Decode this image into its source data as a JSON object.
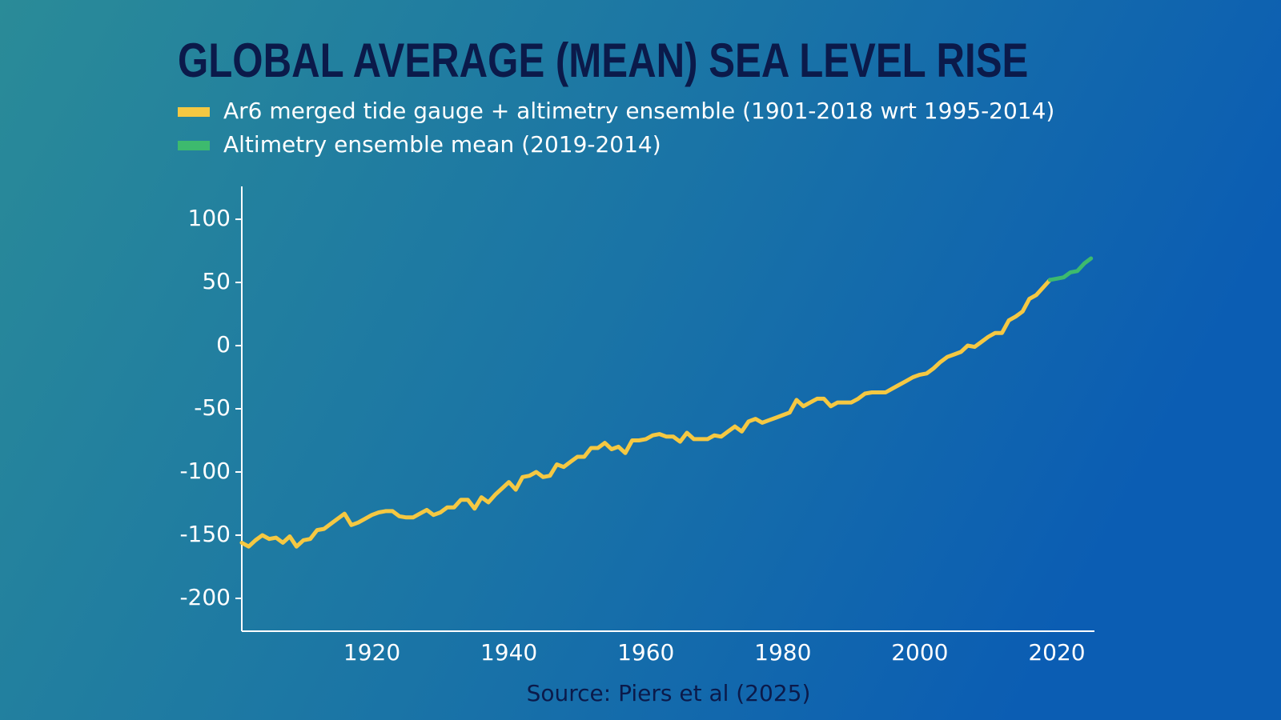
{
  "chart_data": {
    "type": "line",
    "title": "GLOBAL AVERAGE (MEAN) SEA LEVEL RISE",
    "source": "Source: Piers et al (2025)",
    "xlim": [
      1901,
      2025.5
    ],
    "xticks": [
      1920,
      1940,
      1960,
      1980,
      2000,
      2020
    ],
    "ylim": [
      -226,
      126
    ],
    "yticks": [
      -200,
      -150,
      -100,
      -50,
      0,
      50,
      100
    ],
    "grid": false,
    "series": [
      {
        "name": "Ar6 merged tide gauge + altimetry ensemble (1901-2018 wrt 1995-2014)",
        "color": "#f5c842",
        "x": [
          1901,
          1902,
          1903,
          1904,
          1905,
          1906,
          1907,
          1908,
          1909,
          1910,
          1911,
          1912,
          1913,
          1914,
          1915,
          1916,
          1917,
          1918,
          1919,
          1920,
          1921,
          1922,
          1923,
          1924,
          1925,
          1926,
          1927,
          1928,
          1929,
          1930,
          1931,
          1932,
          1933,
          1934,
          1935,
          1936,
          1937,
          1938,
          1939,
          1940,
          1941,
          1942,
          1943,
          1944,
          1945,
          1946,
          1947,
          1948,
          1949,
          1950,
          1951,
          1952,
          1953,
          1954,
          1955,
          1956,
          1957,
          1958,
          1959,
          1960,
          1961,
          1962,
          1963,
          1964,
          1965,
          1966,
          1967,
          1968,
          1969,
          1970,
          1971,
          1972,
          1973,
          1974,
          1975,
          1976,
          1977,
          1978,
          1979,
          1980,
          1981,
          1982,
          1983,
          1984,
          1985,
          1986,
          1987,
          1988,
          1989,
          1990,
          1991,
          1992,
          1993,
          1994,
          1995,
          1996,
          1997,
          1998,
          1999,
          2000,
          2001,
          2002,
          2003,
          2004,
          2005,
          2006,
          2007,
          2008,
          2009,
          2010,
          2011,
          2012,
          2013,
          2014,
          2015,
          2016,
          2017,
          2018,
          2019
        ],
        "values": [
          -156,
          -159,
          -154,
          -150,
          -153,
          -152,
          -156,
          -151,
          -159,
          -154,
          -153,
          -146,
          -145,
          -141,
          -137,
          -133,
          -142,
          -140,
          -137,
          -134,
          -132,
          -131,
          -131,
          -135,
          -136,
          -136,
          -133,
          -130,
          -134,
          -132,
          -128,
          -128,
          -122,
          -122,
          -129,
          -120,
          -124,
          -118,
          -113,
          -108,
          -114,
          -104,
          -103,
          -100,
          -104,
          -103,
          -94,
          -96,
          -92,
          -88,
          -88,
          -81,
          -81,
          -77,
          -82,
          -80,
          -85,
          -75,
          -75,
          -74,
          -71,
          -70,
          -72,
          -72,
          -76,
          -69,
          -74,
          -74,
          -74,
          -71,
          -72,
          -68,
          -64,
          -68,
          -60,
          -58,
          -61,
          -59,
          -57,
          -55,
          -53,
          -43,
          -48,
          -45,
          -42,
          -42,
          -48,
          -45,
          -45,
          -45,
          -42,
          -38,
          -37,
          -37,
          -37,
          -34,
          -31,
          -28,
          -25,
          -23,
          -22,
          -18,
          -13,
          -9,
          -7,
          -5,
          0,
          -1,
          3,
          7,
          10,
          10,
          20,
          23,
          27,
          37,
          40,
          46,
          52
        ]
      },
      {
        "name": "Altimetry ensemble mean (2019-2014)",
        "color": "#3dba6e",
        "x": [
          2019,
          2020,
          2021,
          2022,
          2023,
          2024,
          2025
        ],
        "values": [
          52,
          53,
          54,
          58,
          59,
          65,
          69
        ]
      }
    ]
  }
}
